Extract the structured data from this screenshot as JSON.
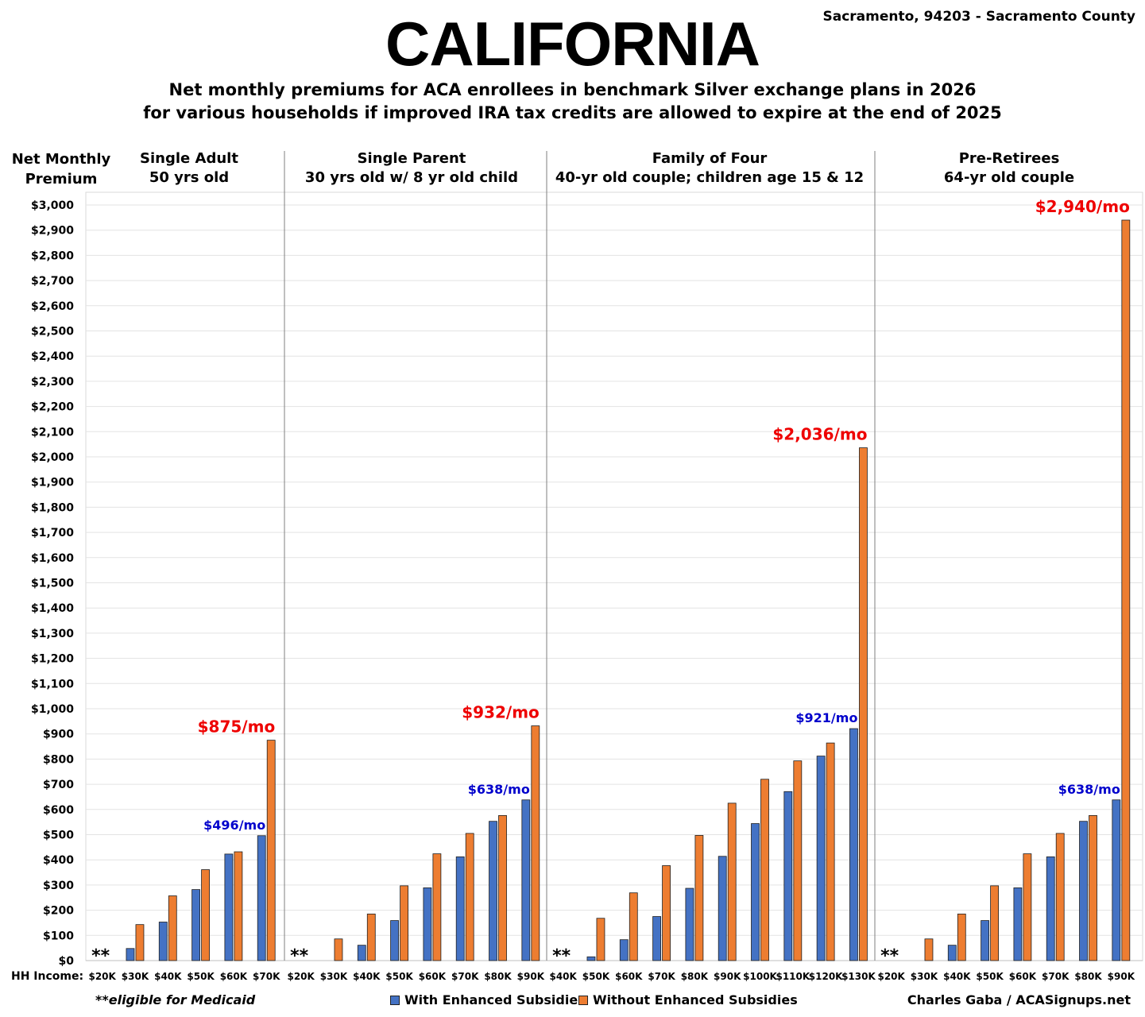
{
  "title": "CALIFORNIA",
  "location": "Sacramento, 94203 - Sacramento County",
  "subtitle_line1": "Net monthly premiums for ACA enrollees in benchmark Silver exchange plans in 2026",
  "subtitle_line2": "for various households if improved IRA tax credits are allowed to expire at the end of 2025",
  "footnote": "**eligible for Medicaid",
  "credit": "Charles Gaba / ACASignups.net",
  "colors": {
    "with": "#4472C4",
    "without": "#ED7D31",
    "label_with": "#0000CC",
    "label_without": "#EE0000"
  },
  "chart_data": {
    "type": "bar",
    "ylabel_line1": "Net Monthly",
    "ylabel_line2": "Premium",
    "xlabel": "HH Income:",
    "ylim": [
      0,
      3000
    ],
    "yticks": [
      "$0",
      "$100",
      "$200",
      "$300",
      "$400",
      "$500",
      "$600",
      "$700",
      "$800",
      "$900",
      "$1,000",
      "$1,100",
      "$1,200",
      "$1,300",
      "$1,400",
      "$1,500",
      "$1,600",
      "$1,700",
      "$1,800",
      "$1,900",
      "$2,000",
      "$2,100",
      "$2,200",
      "$2,300",
      "$2,400",
      "$2,500",
      "$2,600",
      "$2,700",
      "$2,800",
      "$2,900",
      "$3,000"
    ],
    "grid": true,
    "legend": "bottom",
    "legend_labels": [
      "With Enhanced Subsidies",
      "Without Enhanced Subsidies"
    ],
    "medicaid_marker": "**",
    "panels": [
      {
        "title_line1": "Single Adult",
        "title_line2": "50 yrs old",
        "categories": [
          "$20K",
          "$30K",
          "$40K",
          "$50K",
          "$60K",
          "$70K"
        ],
        "series": [
          {
            "name": "With Enhanced Subsidies",
            "values": [
              0,
              48,
              153,
              282,
              423,
              496
            ]
          },
          {
            "name": "Without Enhanced Subsidies",
            "values": [
              0,
              143,
              257,
              361,
              432,
              875
            ]
          }
        ],
        "annotation_with": "$496/mo",
        "annotation_without": "$875/mo"
      },
      {
        "title_line1": "Single Parent",
        "title_line2": "30 yrs old w/ 8 yr old child",
        "categories": [
          "$20K",
          "$30K",
          "$40K",
          "$50K",
          "$60K",
          "$70K",
          "$80K",
          "$90K"
        ],
        "series": [
          {
            "name": "With Enhanced Subsidies",
            "values": [
              0,
              0,
              61,
              159,
              289,
              412,
              553,
              638
            ]
          },
          {
            "name": "Without Enhanced Subsidies",
            "values": [
              0,
              86,
              185,
              297,
              424,
              505,
              576,
              932
            ]
          }
        ],
        "annotation_with": "$638/mo",
        "annotation_without": "$932/mo"
      },
      {
        "title_line1": "Family of Four",
        "title_line2": "40-yr old couple; children age 15 & 12",
        "categories": [
          "$40K",
          "$50K",
          "$60K",
          "$70K",
          "$80K",
          "$90K",
          "$100K",
          "$110K",
          "$120K",
          "$130K"
        ],
        "series": [
          {
            "name": "With Enhanced Subsidies",
            "values": [
              0,
              15,
              83,
              175,
              287,
              414,
              544,
              671,
              812,
              921
            ]
          },
          {
            "name": "Without Enhanced Subsidies",
            "values": [
              0,
              168,
              269,
              377,
              497,
              625,
              720,
              793,
              864,
              2036
            ]
          }
        ],
        "annotation_with": "$921/mo",
        "annotation_without": "$2,036/mo"
      },
      {
        "title_line1": "Pre-Retirees",
        "title_line2": "64-yr old couple",
        "categories": [
          "$20K",
          "$30K",
          "$40K",
          "$50K",
          "$60K",
          "$70K",
          "$80K",
          "$90K"
        ],
        "series": [
          {
            "name": "With Enhanced Subsidies",
            "values": [
              0,
              0,
              61,
              159,
              289,
              412,
              553,
              638
            ]
          },
          {
            "name": "Without Enhanced Subsidies",
            "values": [
              0,
              86,
              185,
              297,
              424,
              505,
              576,
              2940
            ]
          }
        ],
        "annotation_with": "$638/mo",
        "annotation_without": "$2,940/mo"
      }
    ]
  }
}
